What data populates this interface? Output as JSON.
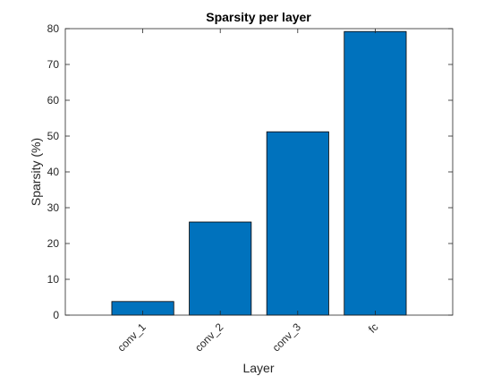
{
  "chart_data": {
    "type": "bar",
    "title": "Sparsity per layer",
    "xlabel": "Layer",
    "ylabel": "Sparsity (%)",
    "categories": [
      "conv_1",
      "conv_2",
      "conv_3",
      "fc"
    ],
    "values": [
      3.8,
      26,
      51.2,
      79.2
    ],
    "ylim": [
      0,
      80
    ],
    "yticks": [
      0,
      10,
      20,
      30,
      40,
      50,
      60,
      70,
      80
    ],
    "grid": false,
    "legend": "none",
    "bar_color": "#0072BD",
    "xtick_rotation_deg": 45
  }
}
